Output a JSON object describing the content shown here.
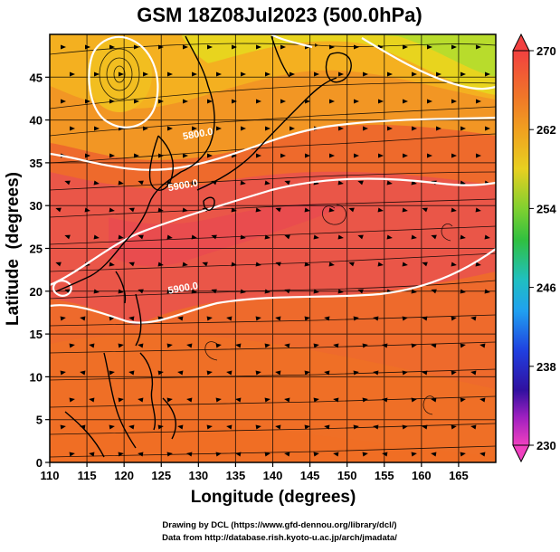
{
  "title": "GSM 18Z08Jul2023 (500.0hPa)",
  "map": {
    "x_axis_label": "Longitude (degrees)",
    "y_axis_label": "Latitude  (degrees)",
    "x_ticks": [
      "110",
      "115",
      "120",
      "125",
      "130",
      "135",
      "140",
      "145",
      "150",
      "155",
      "160",
      "165"
    ],
    "y_ticks": [
      "0",
      "5",
      "10",
      "15",
      "20",
      "25",
      "30",
      "35",
      "40",
      "45"
    ],
    "x_range": [
      110,
      170
    ],
    "y_range": [
      0,
      50
    ],
    "contour_labels": [
      {
        "text": "5800.0",
        "lon": 130,
        "lat": 38
      },
      {
        "text": "5900.0",
        "lon": 128,
        "lat": 32
      },
      {
        "text": "5900.0",
        "lon": 128,
        "lat": 20
      }
    ],
    "field_colors": {
      "north_yellow": "#e8dc1e",
      "north_green": "#b8e030",
      "orange": "#f2a020",
      "dark_orange": "#ec6a28",
      "red": "#e8504c",
      "contour": "#ffffff",
      "coast": "#000000"
    }
  },
  "colorbar": {
    "labels": [
      "270",
      "262",
      "254",
      "246",
      "238",
      "230"
    ],
    "values": [
      270,
      262,
      254,
      246,
      238,
      230
    ]
  },
  "footer": {
    "line1": "Drawing by DCL (https://www.gfd-dennou.org/library/dcl/)",
    "line2": "Data from http://database.rish.kyoto-u.ac.jp/arch/jmadata/"
  }
}
